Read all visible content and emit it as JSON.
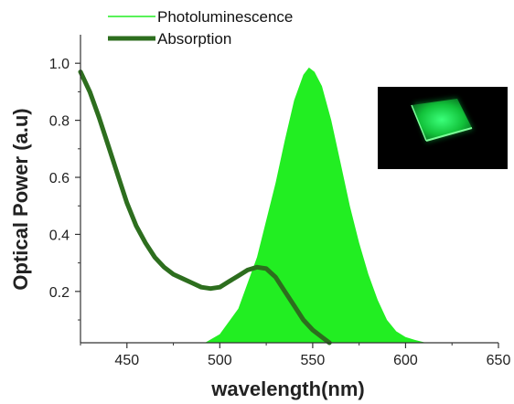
{
  "chart_data": {
    "type": "area",
    "xlabel": "wavelength(nm)",
    "ylabel": "Optical Power (a.u)",
    "xlim": [
      425,
      650
    ],
    "ylim": [
      0.02,
      1.1
    ],
    "xticks": [
      450,
      500,
      550,
      600,
      650
    ],
    "yticks": [
      0.2,
      0.4,
      0.6,
      0.8,
      1.0
    ],
    "ytick_labels": [
      "0.2",
      "0.4",
      "0.6",
      "0.8",
      "1.0"
    ],
    "grid": false,
    "legend_position": "top-left, above plot",
    "series": [
      {
        "name": "Photoluminescence",
        "style": "filled area",
        "color": "#22ee22",
        "x": [
          492,
          500,
          510,
          520,
          530,
          535,
          540,
          545,
          548,
          551,
          555,
          560,
          565,
          570,
          575,
          580,
          585,
          590,
          595,
          600,
          605,
          611
        ],
        "y": [
          0.02,
          0.05,
          0.14,
          0.32,
          0.58,
          0.73,
          0.87,
          0.96,
          0.985,
          0.97,
          0.92,
          0.8,
          0.65,
          0.5,
          0.37,
          0.26,
          0.17,
          0.1,
          0.06,
          0.04,
          0.03,
          0.02
        ]
      },
      {
        "name": "Absorption",
        "style": "thick line",
        "color": "#2d6e1e",
        "x": [
          425,
          430,
          435,
          440,
          445,
          450,
          455,
          460,
          465,
          470,
          475,
          480,
          485,
          490,
          495,
          500,
          505,
          510,
          515,
          520,
          525,
          530,
          535,
          540,
          545,
          550,
          555,
          559
        ],
        "y": [
          0.97,
          0.9,
          0.81,
          0.71,
          0.61,
          0.51,
          0.43,
          0.37,
          0.32,
          0.285,
          0.26,
          0.245,
          0.23,
          0.215,
          0.21,
          0.215,
          0.235,
          0.255,
          0.275,
          0.285,
          0.28,
          0.25,
          0.2,
          0.15,
          0.1,
          0.065,
          0.04,
          0.02
        ]
      }
    ],
    "inset": {
      "description": "photo of a glowing green square plate on a black background",
      "position": "top-right"
    }
  },
  "colors": {
    "pl_fill": "#22ee22",
    "abs_line": "#2d6e1e",
    "axis": "#333333",
    "inset_bg": "#000000"
  }
}
